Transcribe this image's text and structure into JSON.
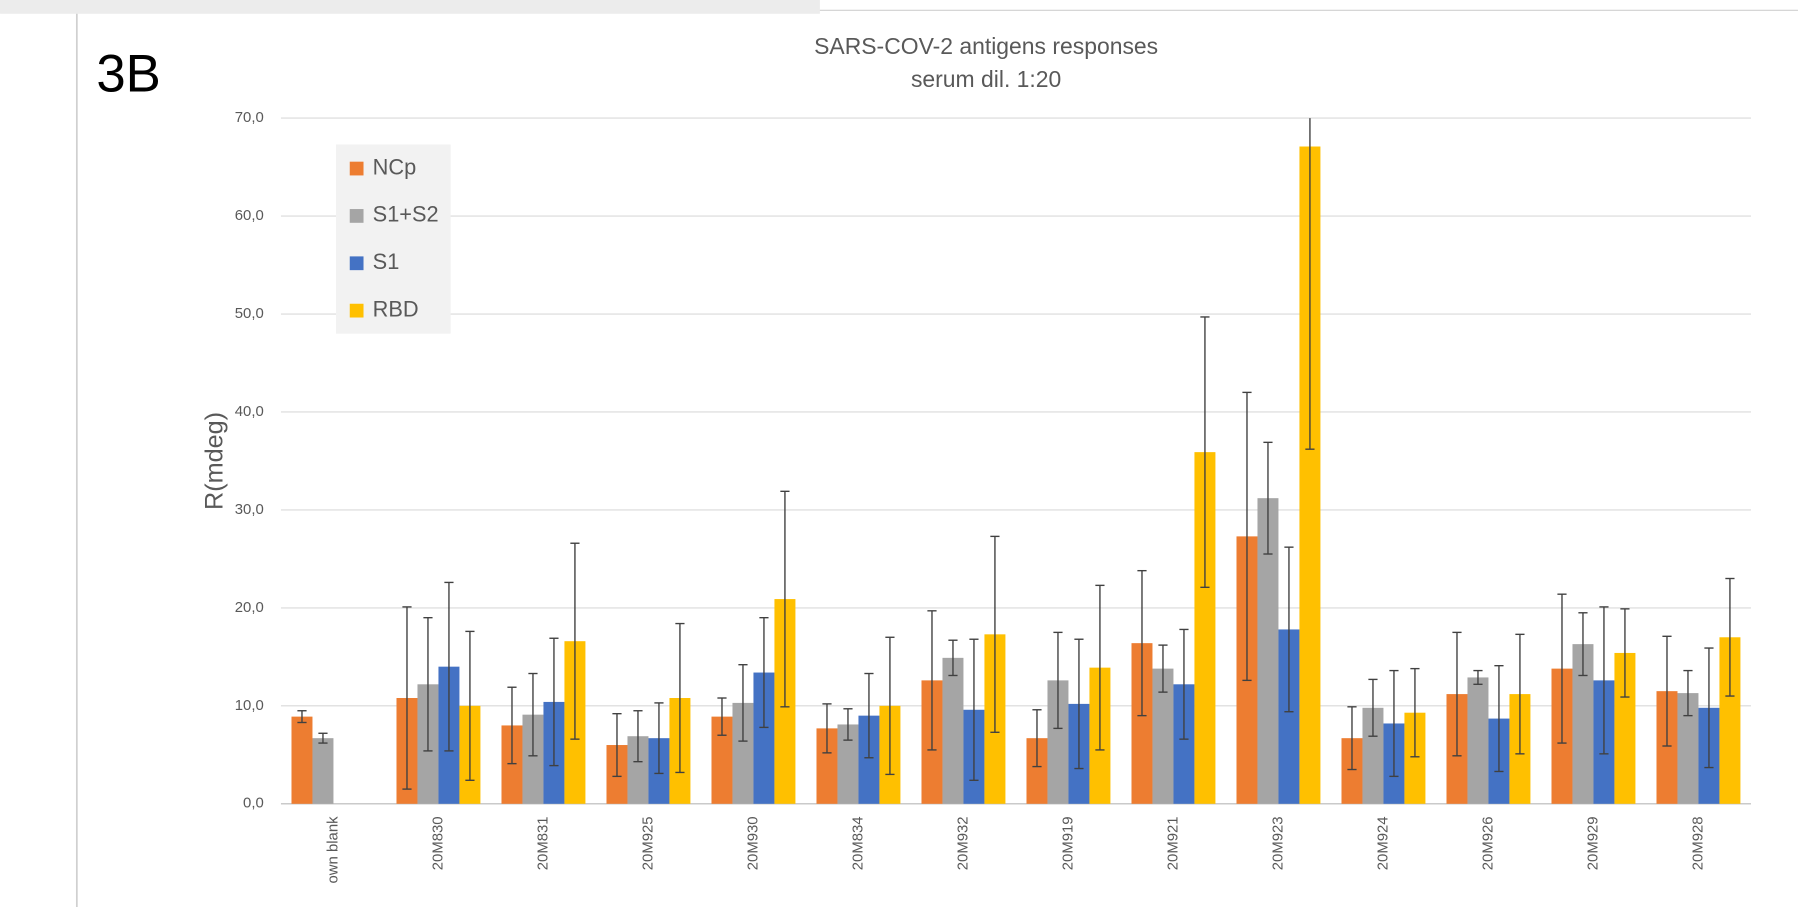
{
  "panel_label": "3B",
  "chart_data": {
    "type": "bar",
    "title": "SARS-COV-2 antigens responses",
    "subtitle": "serum dil. 1:20",
    "y_label": "R(mdeg)",
    "categories": [
      "own blank",
      "20M830",
      "20M831",
      "20M925",
      "20M930",
      "20M834",
      "20M932",
      "20M919",
      "20M921",
      "20M923",
      "20M924",
      "20M926",
      "20M929",
      "20M928"
    ],
    "series": [
      {
        "name": "NCp",
        "color": "#ed7d31",
        "values": [
          8.9,
          10.8,
          8.0,
          6.0,
          8.9,
          7.7,
          12.6,
          6.7,
          16.4,
          27.3,
          6.7,
          11.2,
          13.8,
          11.5
        ],
        "errors": [
          0.6,
          9.3,
          3.9,
          3.2,
          1.9,
          2.5,
          7.1,
          2.9,
          7.4,
          14.7,
          3.2,
          6.3,
          7.6,
          5.6
        ]
      },
      {
        "name": "S1+S2",
        "color": "#a5a5a5",
        "values": [
          6.7,
          12.2,
          9.1,
          6.9,
          10.3,
          8.1,
          14.9,
          12.6,
          13.8,
          31.2,
          9.8,
          12.9,
          16.3,
          11.3
        ],
        "errors": [
          0.5,
          6.8,
          4.2,
          2.6,
          3.9,
          1.6,
          1.8,
          4.9,
          2.4,
          5.7,
          2.9,
          0.7,
          3.2,
          2.3
        ]
      },
      {
        "name": "S1",
        "color": "#4472c4",
        "values": [
          null,
          14.0,
          10.4,
          6.7,
          13.4,
          9.0,
          9.6,
          10.2,
          12.2,
          17.8,
          8.2,
          8.7,
          12.6,
          9.8
        ],
        "errors": [
          null,
          8.6,
          6.5,
          3.6,
          5.6,
          4.3,
          7.2,
          6.6,
          5.6,
          8.4,
          5.4,
          5.4,
          7.5,
          6.1
        ]
      },
      {
        "name": "RBD",
        "color": "#ffc000",
        "values": [
          null,
          10.0,
          16.6,
          10.8,
          20.9,
          10.0,
          17.3,
          13.9,
          35.9,
          67.1,
          9.3,
          11.2,
          15.4,
          17.0
        ],
        "errors": [
          null,
          7.6,
          10.0,
          7.6,
          11.0,
          7.0,
          10.0,
          8.4,
          13.8,
          30.9,
          4.5,
          6.1,
          4.5,
          6.0
        ]
      }
    ],
    "ylim": [
      0,
      70
    ],
    "yticks": [
      {
        "value": 0,
        "label": "0,0"
      },
      {
        "value": 10,
        "label": "10,0"
      },
      {
        "value": 20,
        "label": "20,0"
      },
      {
        "value": 30,
        "label": "30,0"
      },
      {
        "value": 40,
        "label": "40,0"
      },
      {
        "value": 50,
        "label": "50,0"
      },
      {
        "value": 60,
        "label": "60,0"
      },
      {
        "value": 70,
        "label": "70,0"
      }
    ],
    "grid": true,
    "legend": "upper left"
  }
}
